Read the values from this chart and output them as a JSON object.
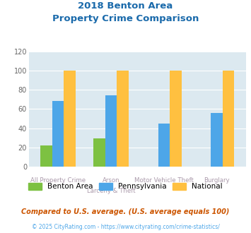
{
  "title_line1": "2018 Benton Area",
  "title_line2": "Property Crime Comparison",
  "cat_labels_line1": [
    "All Property Crime",
    "Arson",
    "Motor Vehicle Theft",
    "Burglary"
  ],
  "cat_labels_line2": [
    "",
    "Larceny & Theft",
    "",
    ""
  ],
  "benton": [
    22,
    29,
    0,
    0
  ],
  "pennsylvania": [
    68,
    74,
    45,
    56
  ],
  "national": [
    100,
    100,
    100,
    100
  ],
  "color_benton": "#7dc142",
  "color_pennsylvania": "#4da6e8",
  "color_national": "#ffc040",
  "ylim": [
    0,
    120
  ],
  "yticks": [
    0,
    20,
    40,
    60,
    80,
    100,
    120
  ],
  "plot_bg": "#dce9f0",
  "title_color": "#1a6aab",
  "xlabel_color": "#aa99aa",
  "footer_color": "#cc5500",
  "footer2_color": "#4da6e8",
  "footer_text": "Compared to U.S. average. (U.S. average equals 100)",
  "footer2_text": "© 2025 CityRating.com - https://www.cityrating.com/crime-statistics/",
  "legend_labels": [
    "Benton Area",
    "Pennsylvania",
    "National"
  ]
}
